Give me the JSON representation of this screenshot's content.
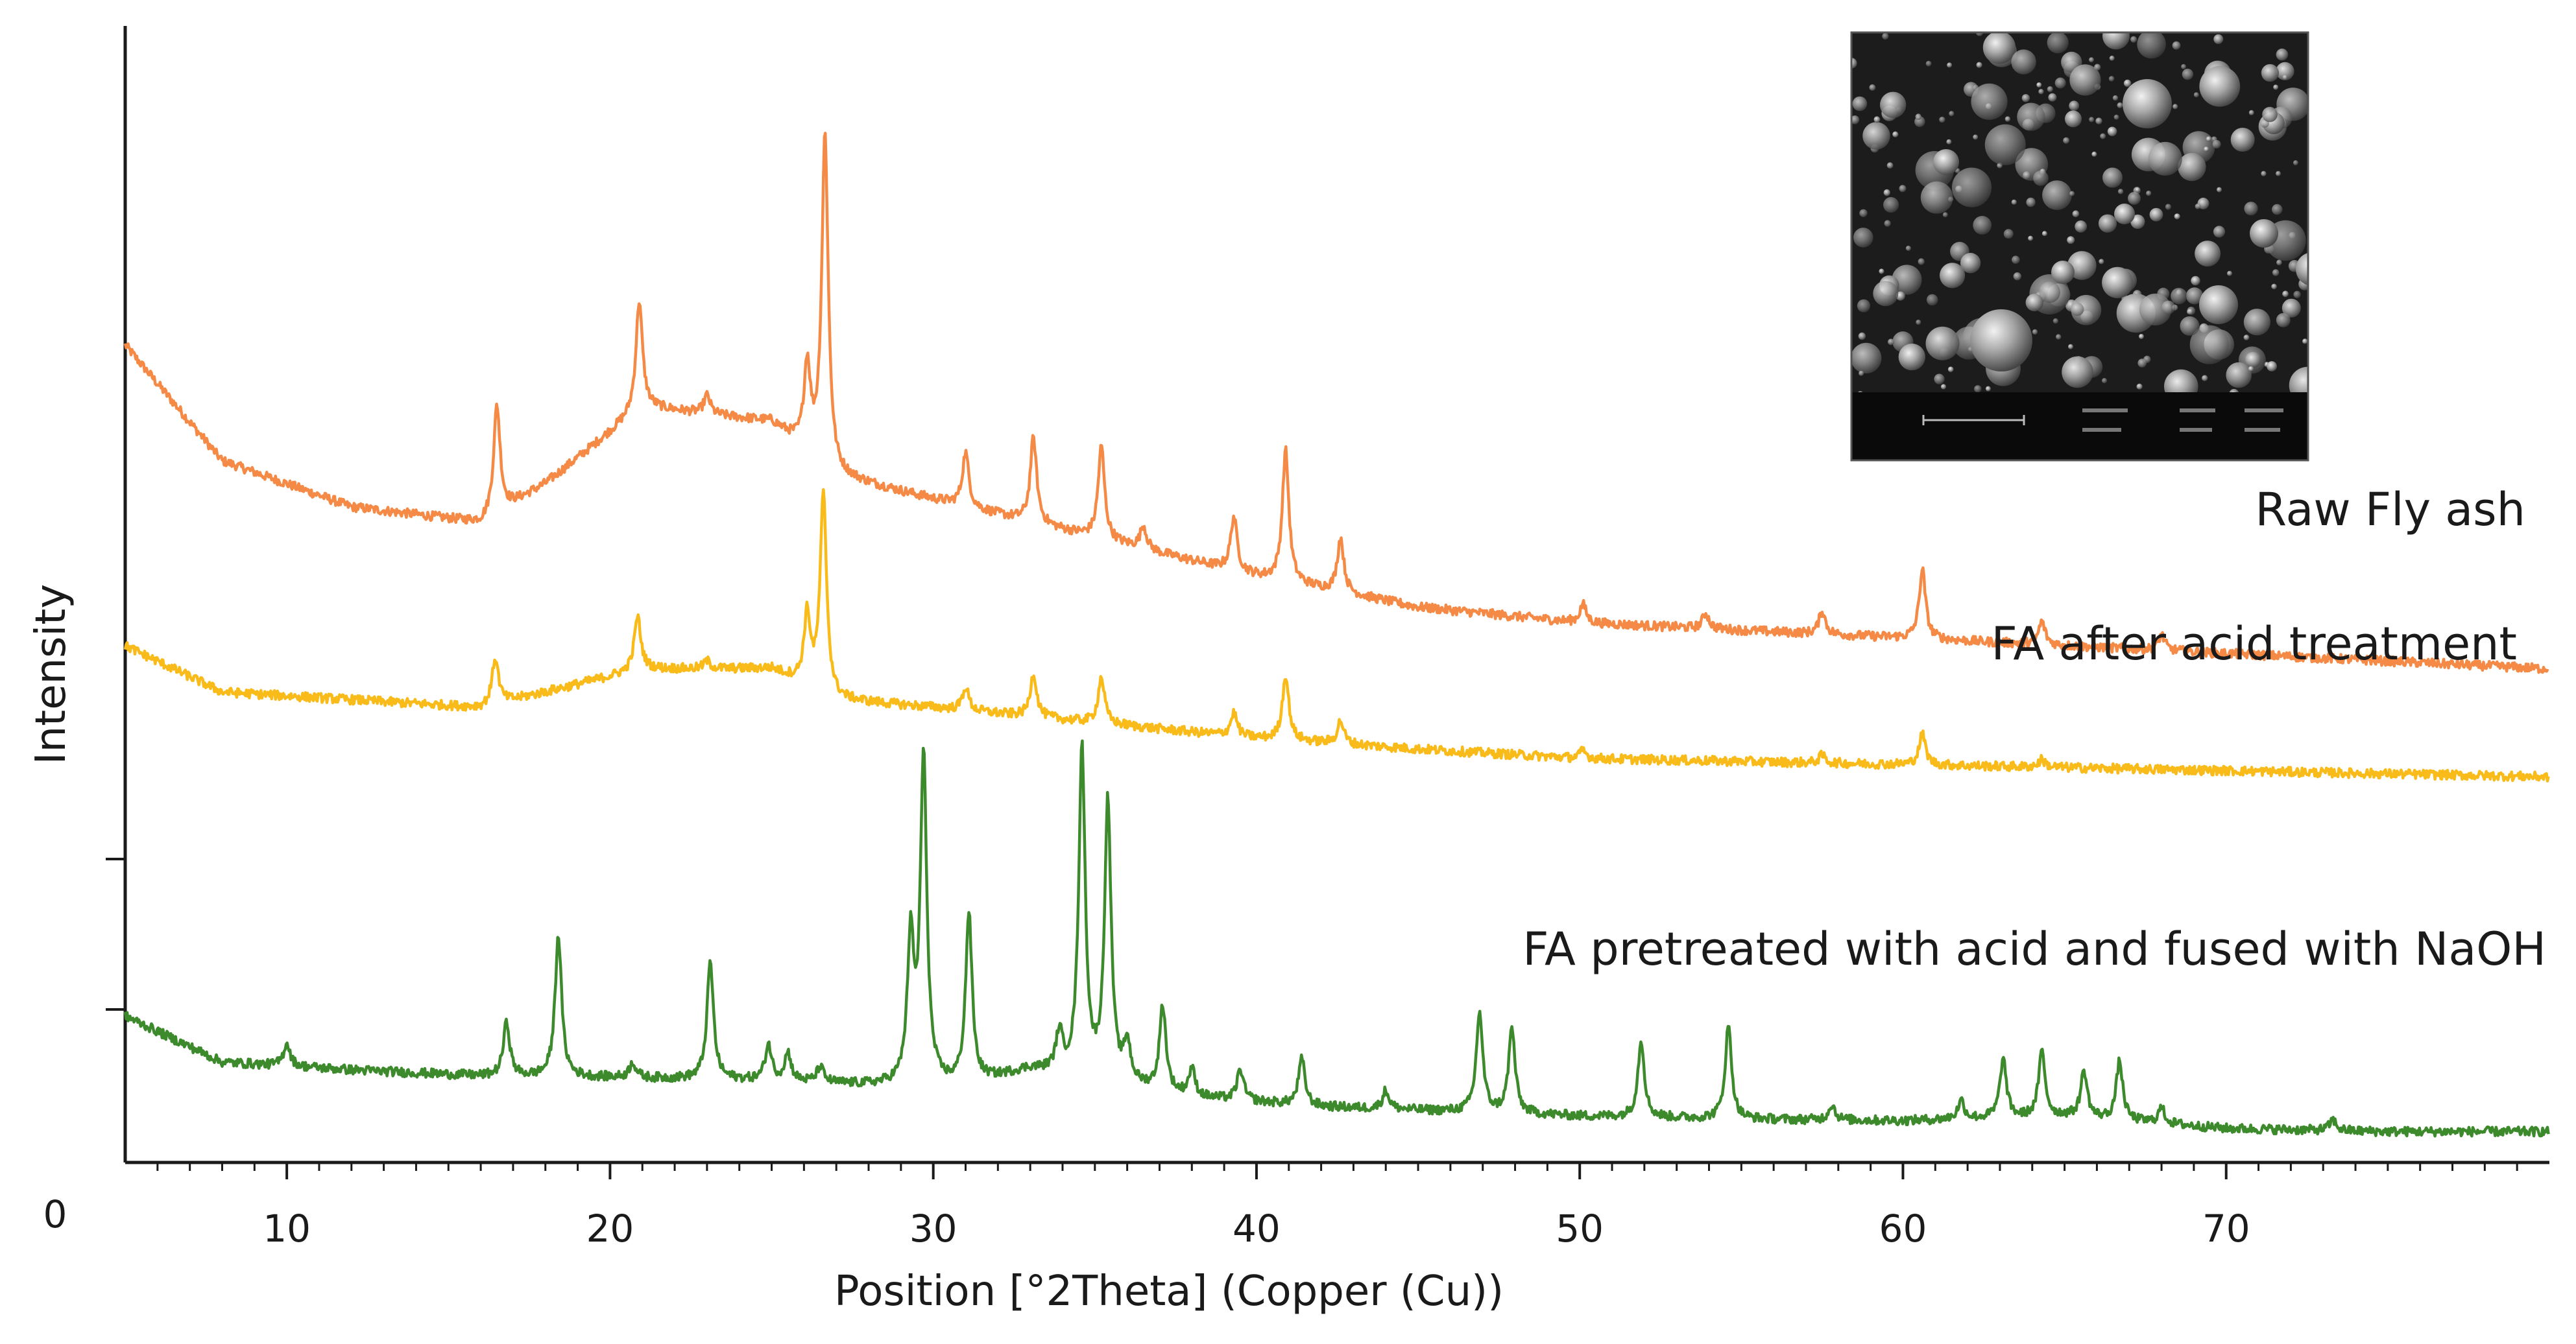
{
  "chart_data": {
    "type": "line",
    "title": "",
    "xlabel": "Position [°2Theta] (Copper (Cu))",
    "ylabel": "Intensity",
    "xlim": [
      5,
      80
    ],
    "x_ticks": [
      "10",
      "20",
      "30",
      "40",
      "50",
      "60",
      "70"
    ],
    "y_origin_label": "0",
    "grid": false,
    "legend": "none",
    "series": [
      {
        "name": "Raw Fly ash",
        "color": "#f58a46",
        "baseline": [
          [
            5,
            5.3
          ],
          [
            8,
            4.55
          ],
          [
            12,
            4.25
          ],
          [
            16,
            4.15
          ],
          [
            18,
            4.4
          ],
          [
            21,
            4.9
          ],
          [
            25,
            4.8
          ],
          [
            27,
            4.45
          ],
          [
            30,
            4.3
          ],
          [
            35,
            4.05
          ],
          [
            40,
            3.8
          ],
          [
            45,
            3.6
          ],
          [
            50,
            3.5
          ],
          [
            55,
            3.45
          ],
          [
            60,
            3.4
          ],
          [
            65,
            3.35
          ],
          [
            70,
            3.3
          ],
          [
            75,
            3.25
          ],
          [
            80,
            3.2
          ]
        ],
        "peaks": [
          [
            16.5,
            0.7
          ],
          [
            20.9,
            0.7
          ],
          [
            23.0,
            0.12
          ],
          [
            26.1,
            0.55
          ],
          [
            26.65,
            2.15
          ],
          [
            31.0,
            0.35
          ],
          [
            33.1,
            0.55
          ],
          [
            35.2,
            0.6
          ],
          [
            36.5,
            0.15
          ],
          [
            39.3,
            0.35
          ],
          [
            40.9,
            0.85
          ],
          [
            42.6,
            0.35
          ],
          [
            50.1,
            0.12
          ],
          [
            53.9,
            0.1
          ],
          [
            57.5,
            0.15
          ],
          [
            60.6,
            0.45
          ],
          [
            64.3,
            0.15
          ],
          [
            68.0,
            0.1
          ]
        ]
      },
      {
        "name": "FA after acid treatment",
        "color": "#f8bb1a",
        "baseline": [
          [
            5,
            3.35
          ],
          [
            8,
            3.05
          ],
          [
            12,
            3.0
          ],
          [
            16,
            2.95
          ],
          [
            18,
            3.05
          ],
          [
            21,
            3.2
          ],
          [
            25,
            3.2
          ],
          [
            27,
            3.0
          ],
          [
            30,
            2.95
          ],
          [
            35,
            2.85
          ],
          [
            40,
            2.75
          ],
          [
            45,
            2.68
          ],
          [
            50,
            2.62
          ],
          [
            55,
            2.6
          ],
          [
            60,
            2.58
          ],
          [
            65,
            2.56
          ],
          [
            70,
            2.54
          ],
          [
            75,
            2.52
          ],
          [
            80,
            2.5
          ]
        ],
        "peaks": [
          [
            16.45,
            0.3
          ],
          [
            20.85,
            0.35
          ],
          [
            23.0,
            0.05
          ],
          [
            26.1,
            0.45
          ],
          [
            26.6,
            1.28
          ],
          [
            31.0,
            0.15
          ],
          [
            33.1,
            0.28
          ],
          [
            35.2,
            0.3
          ],
          [
            39.3,
            0.15
          ],
          [
            40.9,
            0.42
          ],
          [
            42.6,
            0.15
          ],
          [
            50.1,
            0.05
          ],
          [
            57.5,
            0.05
          ],
          [
            60.6,
            0.2
          ],
          [
            64.3,
            0.05
          ]
        ]
      },
      {
        "name": "FA pretreated with acid and fused with NaOH",
        "color": "#3d8a2c",
        "baseline": [
          [
            5,
            0.95
          ],
          [
            8,
            0.65
          ],
          [
            12,
            0.6
          ],
          [
            16,
            0.56
          ],
          [
            20,
            0.55
          ],
          [
            25,
            0.53
          ],
          [
            28,
            0.5
          ],
          [
            31,
            0.5
          ],
          [
            33,
            0.6
          ],
          [
            36,
            0.5
          ],
          [
            38,
            0.42
          ],
          [
            42,
            0.36
          ],
          [
            46,
            0.33
          ],
          [
            50,
            0.3
          ],
          [
            55,
            0.28
          ],
          [
            60,
            0.27
          ],
          [
            65,
            0.3
          ],
          [
            70,
            0.22
          ],
          [
            75,
            0.2
          ],
          [
            80,
            0.2
          ]
        ],
        "peaks": [
          [
            10.0,
            0.15
          ],
          [
            16.8,
            0.35
          ],
          [
            18.4,
            0.92
          ],
          [
            20.7,
            0.1
          ],
          [
            23.1,
            0.76
          ],
          [
            24.9,
            0.23
          ],
          [
            25.5,
            0.18
          ],
          [
            26.5,
            0.1
          ],
          [
            29.3,
            0.92
          ],
          [
            29.7,
            2.1
          ],
          [
            31.1,
            1.1
          ],
          [
            33.9,
            0.25
          ],
          [
            34.6,
            2.12
          ],
          [
            35.4,
            1.8
          ],
          [
            36.0,
            0.25
          ],
          [
            37.1,
            0.55
          ],
          [
            38.0,
            0.18
          ],
          [
            39.5,
            0.2
          ],
          [
            41.4,
            0.3
          ],
          [
            44.0,
            0.12
          ],
          [
            46.9,
            0.65
          ],
          [
            47.9,
            0.55
          ],
          [
            51.9,
            0.5
          ],
          [
            54.6,
            0.6
          ],
          [
            57.8,
            0.1
          ],
          [
            61.8,
            0.12
          ],
          [
            63.1,
            0.38
          ],
          [
            64.3,
            0.42
          ],
          [
            65.6,
            0.3
          ],
          [
            66.7,
            0.38
          ],
          [
            68.0,
            0.1
          ],
          [
            73.3,
            0.07
          ]
        ]
      }
    ],
    "inset": {
      "type": "micrograph",
      "description_label": "SEM inset of raw fly ash"
    }
  }
}
